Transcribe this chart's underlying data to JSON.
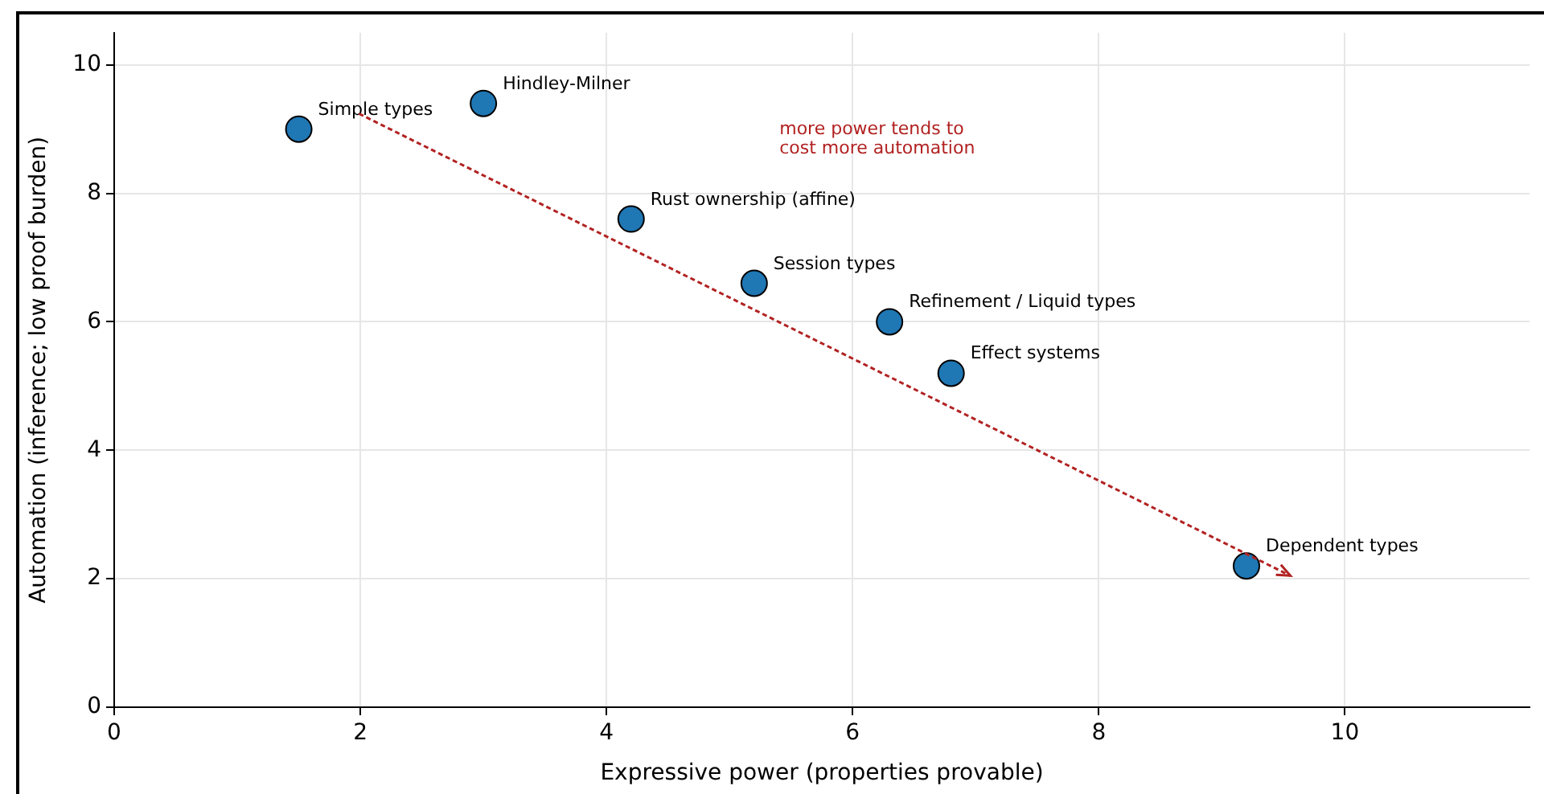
{
  "chart_data": {
    "type": "scatter",
    "xlabel": "Expressive power (properties provable)",
    "ylabel": "Automation (inference; low proof burden)",
    "xlim": [
      0,
      11.5
    ],
    "xticks": [
      0,
      2,
      4,
      6,
      8,
      10
    ],
    "ylim": [
      0,
      10.5
    ],
    "yticks": [
      0,
      2,
      4,
      6,
      8,
      10
    ],
    "grid": true,
    "legend": false,
    "marker": "circle",
    "annotations": [
      "more power tends to\ncost more automation"
    ],
    "series": [
      {
        "name": "Simple types",
        "color": "#1f77b4",
        "x": [
          1.5
        ],
        "values": [
          9.0
        ]
      },
      {
        "name": "Hindley-Milner",
        "color": "#1f77b4",
        "x": [
          3.0
        ],
        "values": [
          9.4
        ]
      },
      {
        "name": "Rust ownership (affine)",
        "color": "#1f77b4",
        "x": [
          4.2
        ],
        "values": [
          7.6
        ]
      },
      {
        "name": "Session types",
        "color": "#1f77b4",
        "x": [
          5.2
        ],
        "values": [
          6.6
        ]
      },
      {
        "name": "Refinement / Liquid types",
        "color": "#1f77b4",
        "x": [
          6.3
        ],
        "values": [
          6.0
        ]
      },
      {
        "name": "Effect systems",
        "color": "#1f77b4",
        "x": [
          6.8
        ],
        "values": [
          5.2
        ]
      },
      {
        "name": "Dependent types",
        "color": "#1f77b4",
        "x": [
          9.2
        ],
        "values": [
          2.2
        ]
      }
    ]
  }
}
